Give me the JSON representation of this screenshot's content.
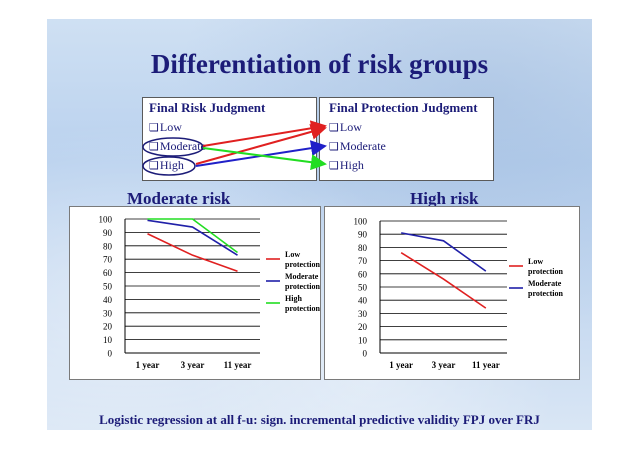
{
  "title": "Differentiation of risk groups",
  "risk_judgment": {
    "heading": "Final Risk Judgment",
    "options": [
      "Low",
      "Moderate",
      "High"
    ]
  },
  "protection_judgment": {
    "heading": "Final Protection Judgment",
    "options": [
      "Low",
      "Moderate",
      "High"
    ]
  },
  "arrows": [
    {
      "from": "Moderate",
      "to": "Low",
      "color": "#e02020"
    },
    {
      "from": "Moderate",
      "to": "High",
      "color": "#22dd22"
    },
    {
      "from": "High",
      "to": "Moderate",
      "color": "#2020c8"
    },
    {
      "from": "High",
      "to": "Low",
      "color": "#e02020"
    }
  ],
  "colors": {
    "title": "#1c1c78",
    "low": "#e02020",
    "moderate": "#2020a8",
    "high": "#22dd22"
  },
  "footer": "Logistic regression at all f-u: sign. incremental predictive validity FPJ over FRJ",
  "chart_data": [
    {
      "type": "line",
      "title": "Moderate risk",
      "categories": [
        "1 year",
        "3 year",
        "11 year"
      ],
      "ylim": [
        0,
        100
      ],
      "yticks": [
        "0",
        "10",
        "20",
        "30",
        "40",
        "50",
        "60",
        "70",
        "80",
        "90",
        "100"
      ],
      "grid": true,
      "legend": "right",
      "series": [
        {
          "name": "Low protection",
          "legend_lines": [
            "Low",
            "protection"
          ],
          "color": "#e02020",
          "values": [
            89,
            73,
            61
          ]
        },
        {
          "name": "Moderate protection",
          "legend_lines": [
            "Moderate",
            "protection"
          ],
          "color": "#2020a8",
          "values": [
            99,
            94,
            73
          ]
        },
        {
          "name": "High protection",
          "legend_lines": [
            "High",
            "protection"
          ],
          "color": "#22dd22",
          "values": [
            100,
            100,
            75
          ]
        }
      ]
    },
    {
      "type": "line",
      "title": "High risk",
      "categories": [
        "1 year",
        "3 year",
        "11 year"
      ],
      "ylim": [
        0,
        100
      ],
      "yticks": [
        "0",
        "10",
        "20",
        "30",
        "40",
        "50",
        "60",
        "70",
        "80",
        "90",
        "100"
      ],
      "grid": true,
      "legend": "right",
      "series": [
        {
          "name": "Low protection",
          "legend_lines": [
            "Low",
            "protection"
          ],
          "color": "#e02020",
          "values": [
            76,
            56,
            34
          ]
        },
        {
          "name": "Moderate protection",
          "legend_lines": [
            "Moderate",
            "protection"
          ],
          "color": "#2020a8",
          "values": [
            91,
            85,
            62
          ]
        }
      ]
    }
  ]
}
